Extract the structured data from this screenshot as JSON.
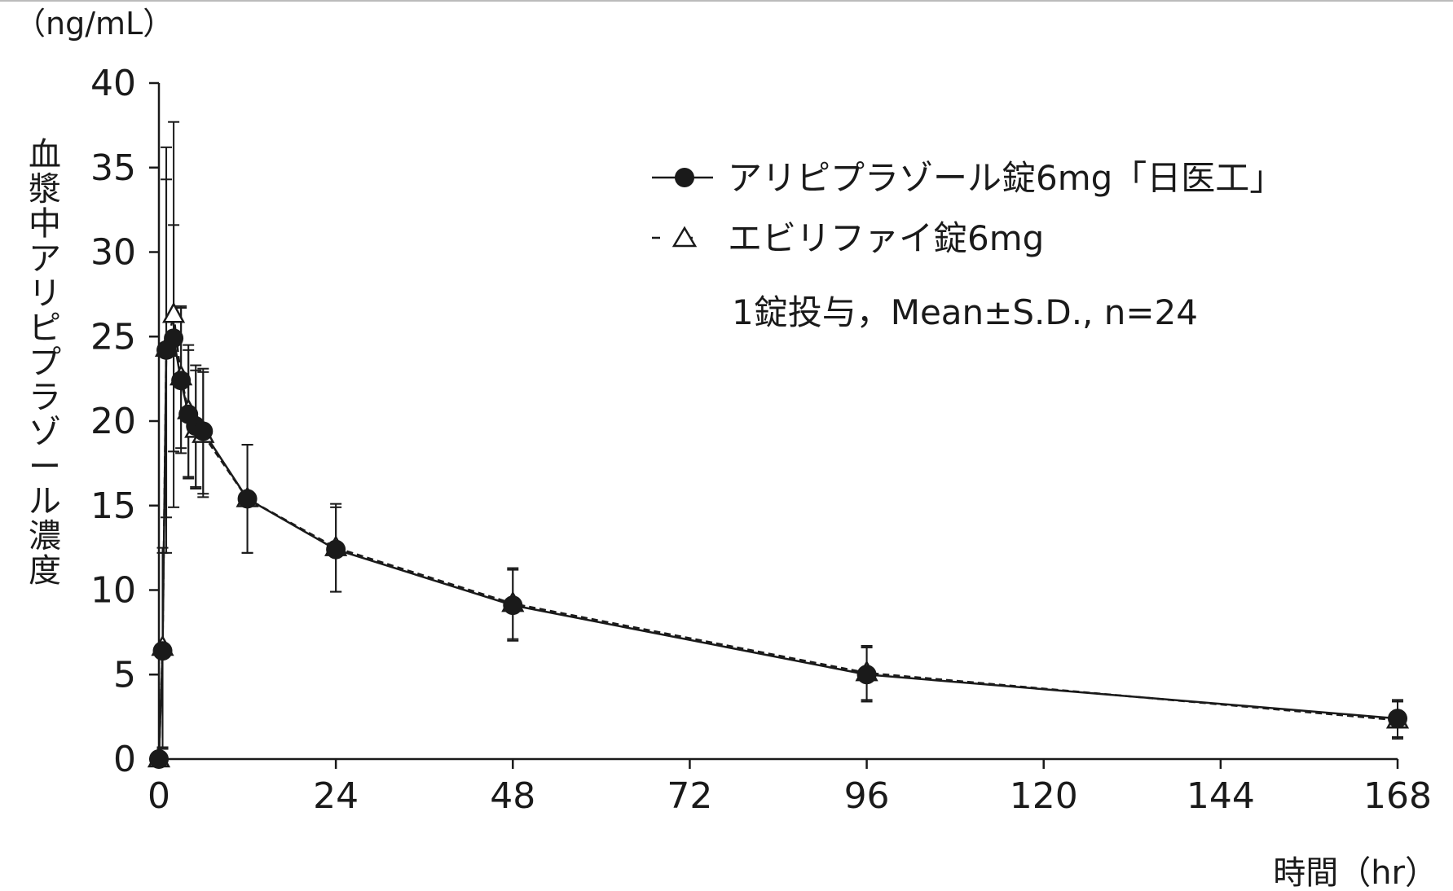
{
  "chart_data": {
    "type": "line",
    "y_unit_label": "（ng/mL）",
    "ylabel": "血漿中アリピプラゾール濃度",
    "xlabel": "時間（hr）",
    "xlim": [
      0,
      168
    ],
    "ylim": [
      0,
      40
    ],
    "x_ticks": [
      0,
      24,
      48,
      72,
      96,
      120,
      144,
      168
    ],
    "y_ticks": [
      0,
      5,
      10,
      15,
      20,
      25,
      30,
      35,
      40
    ],
    "grid": false,
    "legend_position": "top-right",
    "note": "1錠投与，Mean±S.D., n=24",
    "x": [
      0,
      0.5,
      1,
      2,
      3,
      4,
      5,
      6,
      12,
      24,
      48,
      96,
      168
    ],
    "series": [
      {
        "name": "アリピプラゾール錠6mg「日医工」",
        "marker": "filled-circle",
        "line_style": "solid",
        "values": [
          0,
          6.4,
          24.2,
          24.9,
          22.4,
          20.4,
          19.7,
          19.4,
          15.4,
          12.4,
          9.1,
          5.0,
          2.4
        ],
        "sd": [
          0,
          5.8,
          12.0,
          6.7,
          4.3,
          3.8,
          3.6,
          3.7,
          3.2,
          2.5,
          2.1,
          1.6,
          1.1
        ]
      },
      {
        "name": "エビリファイ錠6mg",
        "marker": "open-triangle",
        "line_style": "dashed",
        "values": [
          0,
          6.6,
          24.3,
          26.3,
          22.6,
          20.6,
          19.5,
          19.2,
          15.4,
          12.5,
          9.2,
          5.1,
          2.3
        ],
        "sd": [
          0,
          5.9,
          10.0,
          11.4,
          4.2,
          3.9,
          3.5,
          3.7,
          3.2,
          2.6,
          2.1,
          1.6,
          1.1
        ]
      }
    ]
  }
}
